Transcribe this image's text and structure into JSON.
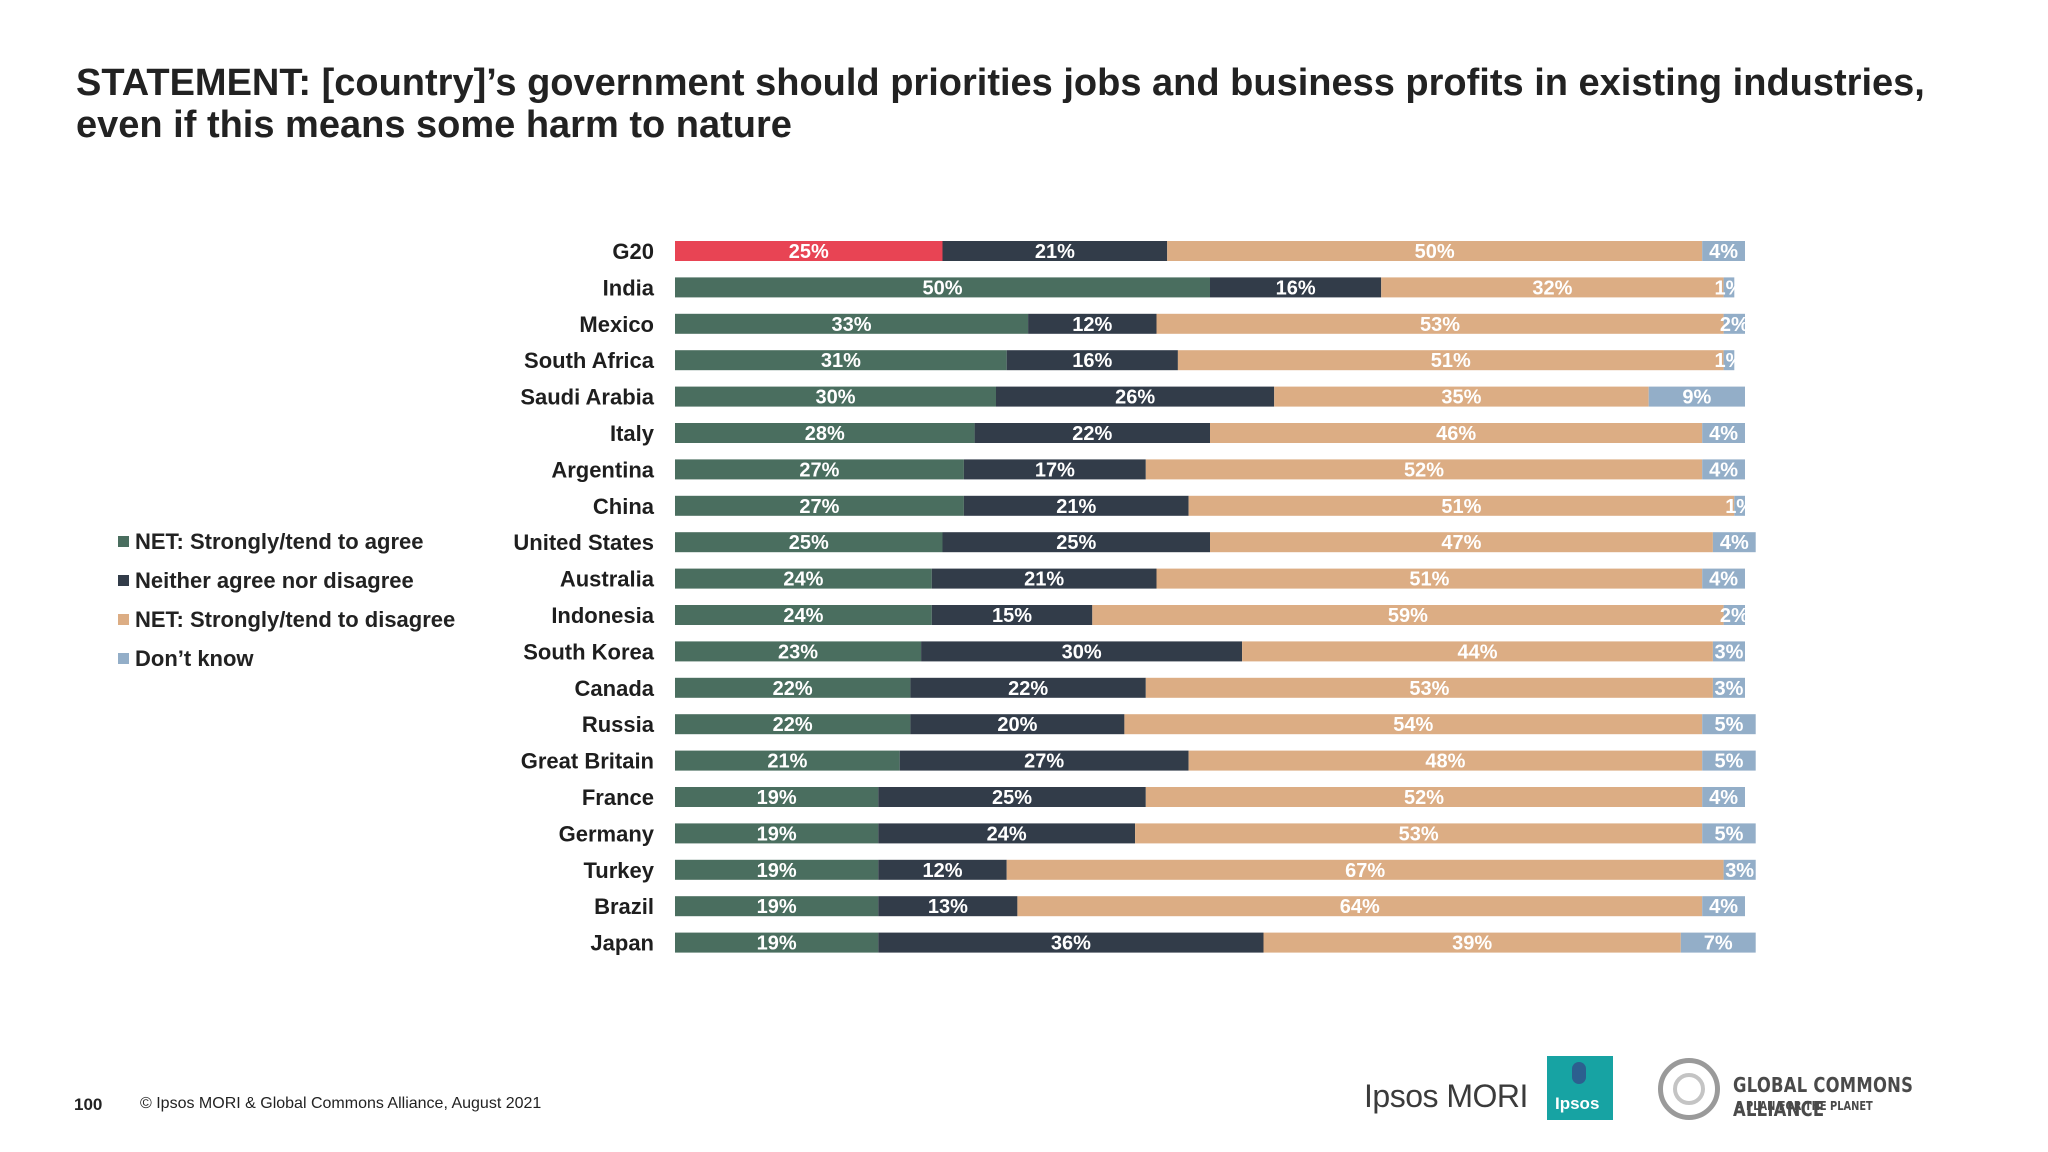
{
  "title": "STATEMENT: [country]’s government should priorities jobs and business profits in existing industries, even if this means some harm to nature",
  "legend": [
    {
      "label": "NET: Strongly/tend to agree",
      "color": "#4a6e5f"
    },
    {
      "label": "Neither agree nor disagree",
      "color": "#323c49"
    },
    {
      "label": "NET: Strongly/tend to disagree",
      "color": "#dcad84"
    },
    {
      "label": "Don’t know",
      "color": "#93aec8"
    }
  ],
  "highlight_color": "#e84454",
  "footer": {
    "page_number": "100",
    "copyright": "© Ipsos MORI & Global Commons Alliance, August 2021"
  },
  "logos": {
    "ipsos_mori_text": "Ipsos MORI",
    "ipsos_box_text": "Ipsos",
    "gca_name": "GLOBAL COMMONS ALLIANCE",
    "gca_tagline": "A PLAN FOR THE PLANET"
  },
  "chart_data": {
    "type": "bar",
    "orientation": "horizontal",
    "stacked": true,
    "title": "",
    "xlabel": "",
    "ylabel": "",
    "categories": [
      "G20",
      "India",
      "Mexico",
      "South Africa",
      "Saudi Arabia",
      "Italy",
      "Argentina",
      "China",
      "United States",
      "Australia",
      "Indonesia",
      "South Korea",
      "Canada",
      "Russia",
      "Great Britain",
      "France",
      "Germany",
      "Turkey",
      "Brazil",
      "Japan"
    ],
    "series": [
      {
        "name": "NET: Strongly/tend to agree",
        "values": [
          25,
          50,
          33,
          31,
          30,
          28,
          27,
          27,
          25,
          24,
          24,
          23,
          22,
          22,
          21,
          19,
          19,
          19,
          19,
          19
        ]
      },
      {
        "name": "Neither agree nor disagree",
        "values": [
          21,
          16,
          12,
          16,
          26,
          22,
          17,
          21,
          25,
          21,
          15,
          30,
          22,
          20,
          27,
          25,
          24,
          12,
          13,
          36
        ]
      },
      {
        "name": "NET: Strongly/tend to disagree",
        "values": [
          50,
          32,
          53,
          51,
          35,
          46,
          52,
          51,
          47,
          51,
          59,
          44,
          53,
          54,
          48,
          52,
          53,
          67,
          64,
          39
        ]
      },
      {
        "name": "Don’t know",
        "values": [
          4,
          1,
          2,
          1,
          9,
          4,
          4,
          1,
          4,
          4,
          2,
          3,
          3,
          5,
          5,
          4,
          5,
          3,
          4,
          7
        ]
      }
    ],
    "value_suffix": "%"
  }
}
